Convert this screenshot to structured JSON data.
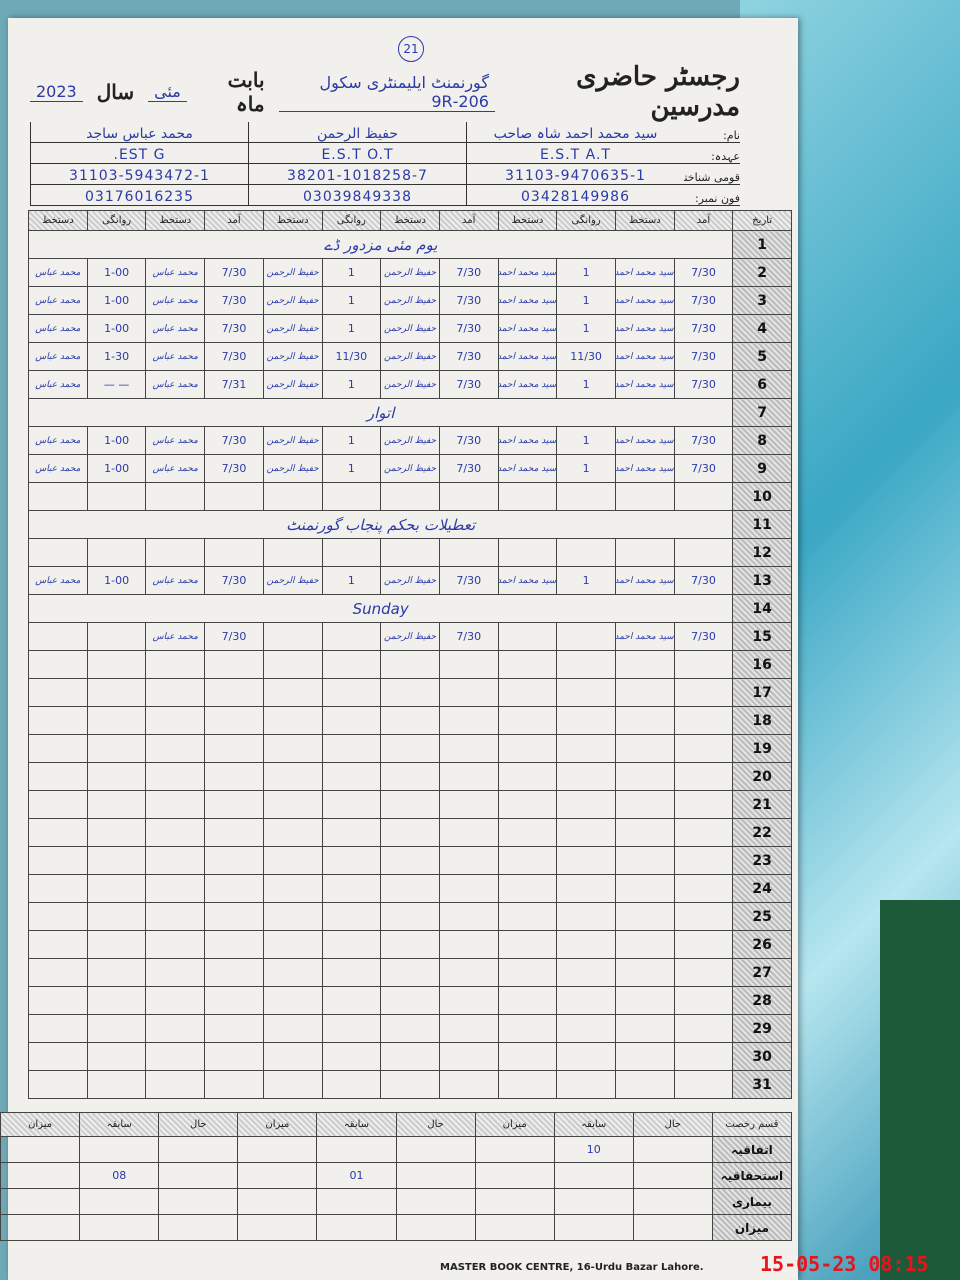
{
  "header": {
    "title": "رجسٹر حاضری مدرسین",
    "school": "گورنمنٹ ایلیمنٹری سکول 206-9R",
    "month_label": "بابت ماہ",
    "month": "مئی",
    "year_label": "سال",
    "year": "2023",
    "page_no": "21"
  },
  "info_labels": [
    "نام:",
    "عہدہ:",
    "قومی شناختی کارڈ نمبر:",
    "فون نمبر:"
  ],
  "teachers": [
    {
      "name": "سید محمد احمد شاہ صاحب",
      "designation": "E.S.T A.T",
      "cnic": "31103-9470635-1",
      "phone": "03428149986"
    },
    {
      "name": "حفیظ الرحمن",
      "designation": "E.S.T O.T",
      "cnic": "38201-1018258-7",
      "phone": "03039849338"
    },
    {
      "name": "محمد عباس ساجد",
      "designation": "EST G.",
      "cnic": "31103-5943472-1",
      "phone": "03176016235"
    }
  ],
  "columns": {
    "date": "تاریخ",
    "arrival": "آمد",
    "signature": "دستخط",
    "departure": "روانگی"
  },
  "rows": [
    {
      "day": "1",
      "note": "یوم مئی   مزدور ڈے"
    },
    {
      "day": "2",
      "cells": [
        "7/30",
        "سید محمد احمد",
        "1",
        "سید محمد احمد",
        "7/30",
        "حفیظ الرحمن",
        "1",
        "حفیظ الرحمن",
        "7/30",
        "محمد عباس",
        "1-00",
        "محمد عباس"
      ]
    },
    {
      "day": "3",
      "cells": [
        "7/30",
        "سید محمد احمد",
        "1",
        "سید محمد احمد",
        "7/30",
        "حفیظ الرحمن",
        "1",
        "حفیظ الرحمن",
        "7/30",
        "محمد عباس",
        "1-00",
        "محمد عباس"
      ]
    },
    {
      "day": "4",
      "cells": [
        "7/30",
        "سید محمد احمد",
        "1",
        "سید محمد احمد",
        "7/30",
        "حفیظ الرحمن",
        "1",
        "حفیظ الرحمن",
        "7/30",
        "محمد عباس",
        "1-00",
        "محمد عباس"
      ]
    },
    {
      "day": "5",
      "cells": [
        "7/30",
        "سید محمد احمد",
        "11/30",
        "سید محمد احمد",
        "7/30",
        "حفیظ الرحمن",
        "11/30",
        "حفیظ الرحمن",
        "7/30",
        "محمد عباس",
        "1-30",
        "محمد عباس"
      ]
    },
    {
      "day": "6",
      "cells": [
        "7/30",
        "سید محمد احمد",
        "1",
        "سید محمد احمد",
        "7/30",
        "حفیظ الرحمن",
        "1",
        "حفیظ الرحمن",
        "7/31",
        "محمد عباس",
        "— —",
        "محمد عباس"
      ]
    },
    {
      "day": "7",
      "note": "اتوار"
    },
    {
      "day": "8",
      "cells": [
        "7/30",
        "سید محمد احمد",
        "1",
        "سید محمد احمد",
        "7/30",
        "حفیظ الرحمن",
        "1",
        "حفیظ الرحمن",
        "7/30",
        "محمد عباس",
        "1-00",
        "محمد عباس"
      ]
    },
    {
      "day": "9",
      "cells": [
        "7/30",
        "سید محمد احمد",
        "1",
        "سید محمد احمد",
        "7/30",
        "حفیظ الرحمن",
        "1",
        "حفیظ الرحمن",
        "7/30",
        "محمد عباس",
        "1-00",
        "محمد عباس"
      ]
    },
    {
      "day": "10"
    },
    {
      "day": "11",
      "note": "تعطیلات بحکم پنجاب گورنمنٹ"
    },
    {
      "day": "12"
    },
    {
      "day": "13",
      "cells": [
        "7/30",
        "سید محمد احمد",
        "1",
        "سید محمد احمد",
        "7/30",
        "حفیظ الرحمن",
        "1",
        "حفیظ الرحمن",
        "7/30",
        "محمد عباس",
        "1-00",
        "محمد عباس"
      ]
    },
    {
      "day": "14",
      "note": "Sunday"
    },
    {
      "day": "15",
      "cells": [
        "7/30",
        "سید محمد احمد",
        "",
        "",
        "7/30",
        "حفیظ الرحمن",
        "",
        "",
        "7/30",
        "محمد عباس",
        "",
        ""
      ]
    },
    {
      "day": "16"
    },
    {
      "day": "17"
    },
    {
      "day": "18"
    },
    {
      "day": "19"
    },
    {
      "day": "20"
    },
    {
      "day": "21"
    },
    {
      "day": "22"
    },
    {
      "day": "23"
    },
    {
      "day": "24"
    },
    {
      "day": "25"
    },
    {
      "day": "26"
    },
    {
      "day": "27"
    },
    {
      "day": "28"
    },
    {
      "day": "29"
    },
    {
      "day": "30"
    },
    {
      "day": "31"
    }
  ],
  "leave": {
    "header": "قسم رخصت",
    "cols": [
      "حال",
      "سابقہ",
      "میزان"
    ],
    "types": [
      "اتفاقیہ",
      "استحقاقیہ",
      "بیماری",
      "میزان"
    ],
    "values": [
      [
        "",
        "10",
        "",
        "",
        "",
        "",
        "",
        "",
        ""
      ],
      [
        "",
        "",
        "",
        "",
        "01",
        "",
        "",
        "08",
        ""
      ],
      [
        "",
        "",
        "",
        "",
        "",
        "",
        "",
        "",
        ""
      ],
      [
        "",
        "",
        "",
        "",
        "",
        "",
        "",
        "",
        ""
      ]
    ]
  },
  "footer": "MASTER BOOK CENTRE, 16-Urdu Bazar Lahore.",
  "timestamp": "15-05-23  08:15"
}
